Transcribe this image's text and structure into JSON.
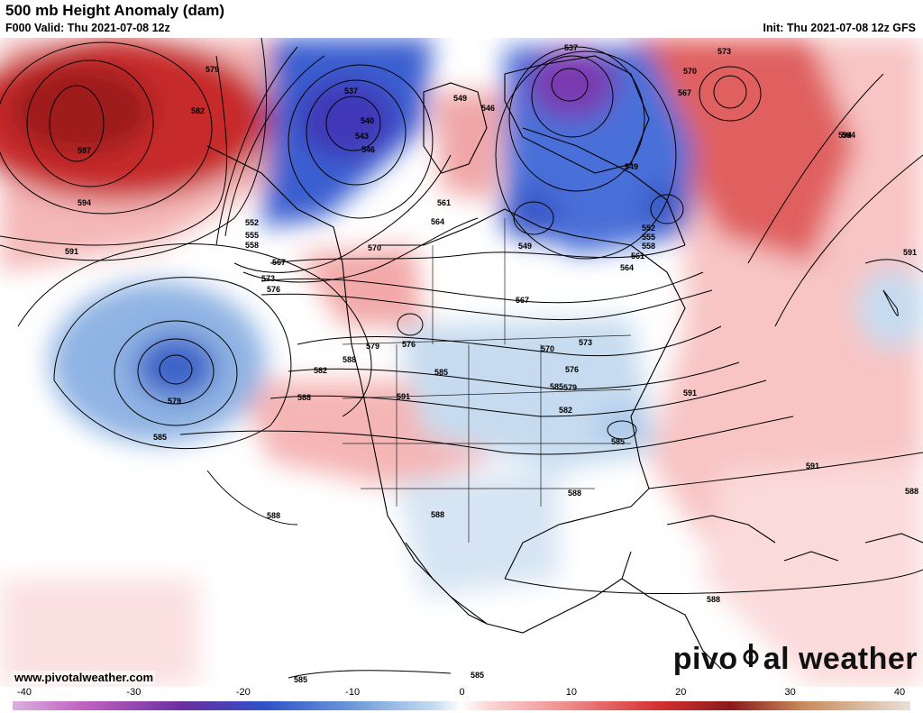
{
  "header": {
    "title": "500 mb Height Anomaly (dam)",
    "valid": "F000 Valid: Thu 2021-07-08 12z",
    "init": "Init: Thu 2021-07-08 12z GFS"
  },
  "footer": {
    "website": "www.pivotalweather.com",
    "brand_left": "pivo",
    "brand_right": "al weather",
    "brand_icon": "pivotal-logo-icon"
  },
  "colorbar": {
    "ticks": [
      "-40",
      "-30",
      "-20",
      "-10",
      "0",
      "10",
      "20",
      "30",
      "40"
    ],
    "range": [
      -40,
      40
    ],
    "colors": {
      "strong_negative": "#c060c0",
      "negative": "#3050c8",
      "weak_negative": "#c6dbef",
      "neutral": "#ffffff",
      "weak_positive": "#fbd6d6",
      "positive": "#d43030",
      "strong_positive": "#8b1a1a",
      "extreme_positive": "#d9c9a8"
    }
  },
  "contour_labels": [
    "579",
    "582",
    "597",
    "594",
    "591",
    "537",
    "540",
    "543",
    "546",
    "549",
    "552",
    "555",
    "558",
    "561",
    "564",
    "567",
    "570",
    "573",
    "576",
    "579",
    "582",
    "585",
    "588",
    "591",
    "594",
    "537",
    "546",
    "549",
    "552",
    "555",
    "558",
    "561",
    "564",
    "567",
    "570",
    "573",
    "576",
    "579",
    "582",
    "585",
    "588",
    "591",
    "594",
    "549",
    "570",
    "567",
    "573",
    "576",
    "579",
    "585",
    "588",
    "591",
    "588",
    "585",
    "585",
    "588",
    "591",
    "588",
    "588",
    "585"
  ]
}
